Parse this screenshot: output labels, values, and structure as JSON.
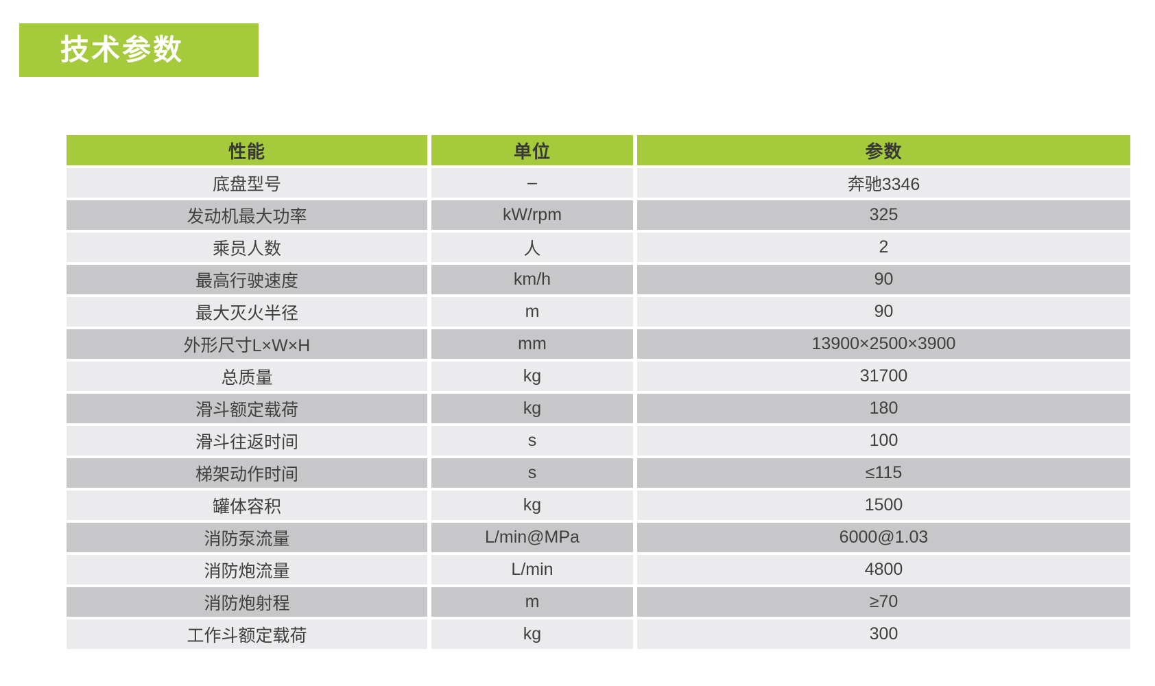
{
  "colors": {
    "green": "#a5ca3c",
    "row_light": "#ebebed",
    "row_dark": "#c7c7c9",
    "text": "#3f3f3f"
  },
  "banner": {
    "title": "技术参数"
  },
  "table": {
    "headers": [
      "性能",
      "单位",
      "参数"
    ],
    "rows": [
      {
        "name": "底盘型号",
        "unit": "–",
        "value": "奔驰3346"
      },
      {
        "name": "发动机最大功率",
        "unit": "kW/rpm",
        "value": "325"
      },
      {
        "name": "乘员人数",
        "unit": "人",
        "value": "2"
      },
      {
        "name": "最高行驶速度",
        "unit": "km/h",
        "value": "90"
      },
      {
        "name": "最大灭火半径",
        "unit": "m",
        "value": "90"
      },
      {
        "name": "外形尺寸L×W×H",
        "unit": "mm",
        "value": "13900×2500×3900"
      },
      {
        "name": "总质量",
        "unit": "kg",
        "value": "31700"
      },
      {
        "name": "滑斗额定载荷",
        "unit": "kg",
        "value": "180"
      },
      {
        "name": "滑斗往返时间",
        "unit": "s",
        "value": "100"
      },
      {
        "name": "梯架动作时间",
        "unit": "s",
        "value": "≤115"
      },
      {
        "name": "罐体容积",
        "unit": "kg",
        "value": "1500"
      },
      {
        "name": "消防泵流量",
        "unit": "L/min@MPa",
        "value": "6000@1.03"
      },
      {
        "name": "消防炮流量",
        "unit": "L/min",
        "value": "4800"
      },
      {
        "name": "消防炮射程",
        "unit": "m",
        "value": "≥70"
      },
      {
        "name": "工作斗额定载荷",
        "unit": "kg",
        "value": "300"
      }
    ]
  }
}
